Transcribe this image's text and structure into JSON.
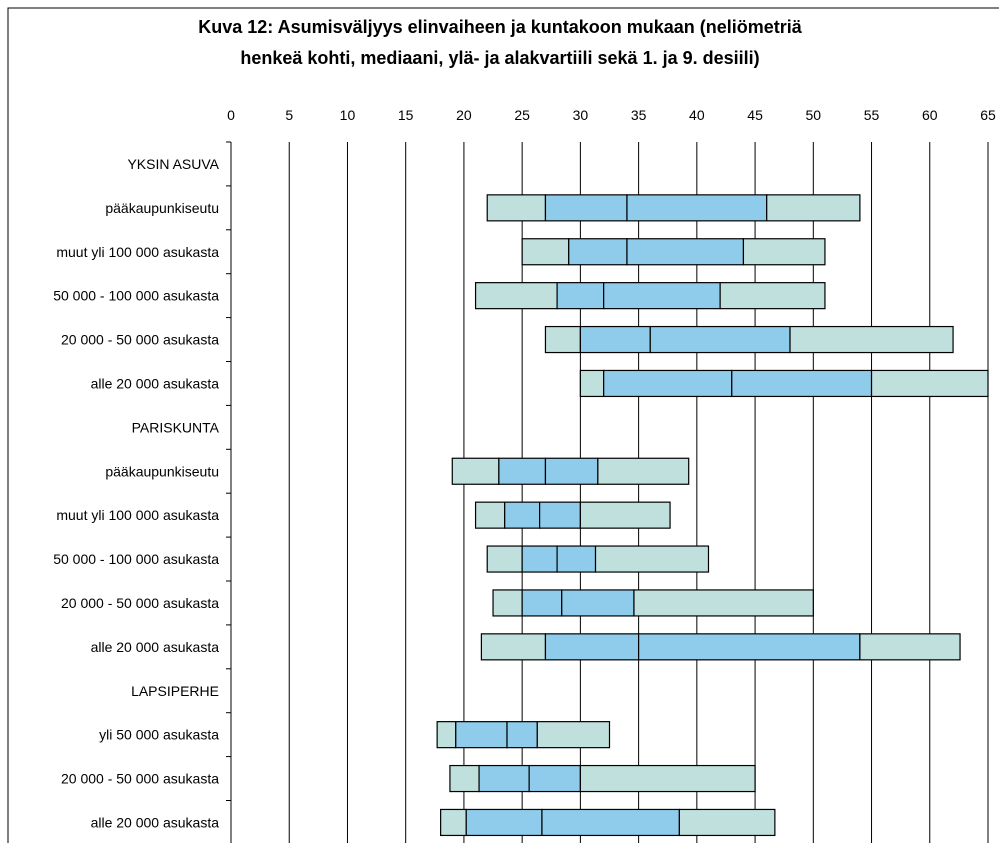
{
  "chart_data": {
    "type": "box-bar",
    "title_lines": [
      "Kuva 12: Asumisväljyys elinvaiheen ja kuntakoon mukaan (neliömetriä",
      "henkeä kohti, mediaani, ylä- ja alakvartiili sekä 1. ja 9. desiili)"
    ],
    "x_ticks": [
      "0",
      "5",
      "10",
      "15",
      "20",
      "25",
      "30",
      "35",
      "40",
      "45",
      "50",
      "55",
      "60",
      "65"
    ],
    "xlim": [
      0,
      65
    ],
    "colors": {
      "outer": "#c0e0dd",
      "inner": "#8fcbea",
      "border": "#000000",
      "grid": "#000000"
    },
    "rows": [
      {
        "label": "YKSIN ASUVA",
        "header": true
      },
      {
        "label": "pääkaupunkiseutu",
        "d1": 22,
        "q1": 27,
        "median": 34,
        "q3": 46,
        "d9": 54
      },
      {
        "label": "muut yli 100 000 asukasta",
        "d1": 25,
        "q1": 29,
        "median": 34,
        "q3": 44,
        "d9": 51
      },
      {
        "label": "50 000 - 100 000 asukasta",
        "d1": 21,
        "q1": 28,
        "median": 32,
        "q3": 42,
        "d9": 51
      },
      {
        "label": "20 000 - 50 000 asukasta",
        "d1": 27,
        "q1": 30,
        "median": 36,
        "q3": 48,
        "d9": 62
      },
      {
        "label": "alle 20 000 asukasta",
        "d1": 30,
        "q1": 32,
        "median": 43,
        "q3": 55,
        "d9": 65
      },
      {
        "label": "PARISKUNTA",
        "header": true
      },
      {
        "label": "pääkaupunkiseutu",
        "d1": 19,
        "q1": 23,
        "median": 27,
        "q3": 31.5,
        "d9": 39.3
      },
      {
        "label": "muut yli 100 000 asukasta",
        "d1": 21,
        "q1": 23.5,
        "median": 26.5,
        "q3": 30,
        "d9": 37.7
      },
      {
        "label": "50 000 - 100 000 asukasta",
        "d1": 22,
        "q1": 25,
        "median": 28,
        "q3": 31.3,
        "d9": 41
      },
      {
        "label": "20 000 - 50 000 asukasta",
        "d1": 22.5,
        "q1": 25,
        "median": 28.4,
        "q3": 34.6,
        "d9": 50
      },
      {
        "label": "alle 20 000 asukasta",
        "d1": 21.5,
        "q1": 27,
        "median": 35,
        "q3": 54,
        "d9": 62.6
      },
      {
        "label": "LAPSIPERHE",
        "header": true
      },
      {
        "label": "yli 50 000 asukasta",
        "d1": 17.7,
        "q1": 19.3,
        "median": 23.7,
        "q3": 26.3,
        "d9": 32.5
      },
      {
        "label": "20 000 - 50 000 asukasta",
        "d1": 18.8,
        "q1": 21.3,
        "median": 25.6,
        "q3": 30,
        "d9": 45
      },
      {
        "label": "alle 20 000 asukasta",
        "d1": 18,
        "q1": 20.2,
        "median": 26.7,
        "q3": 38.5,
        "d9": 46.7
      }
    ]
  }
}
